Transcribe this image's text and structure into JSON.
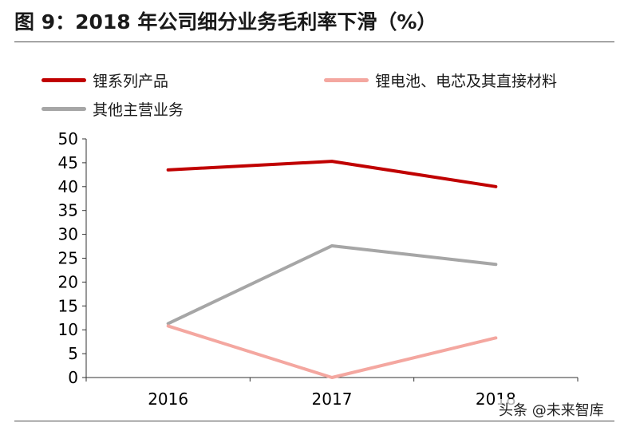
{
  "title": "图 9：2018 年公司细分业务毛利率下滑（%）",
  "watermark": "头条 @未来智库",
  "chart_data": {
    "type": "line",
    "title": "图 9：2018 年公司细分业务毛利率下滑（%）",
    "xlabel": "",
    "ylabel": "",
    "categories": [
      "2016",
      "2017",
      "2018"
    ],
    "ylim": [
      0,
      50
    ],
    "yticks": [
      0,
      5,
      10,
      15,
      20,
      25,
      30,
      35,
      40,
      45,
      50
    ],
    "grid": false,
    "legend_position": "top",
    "series": [
      {
        "name": "锂系列产品",
        "values": [
          43.5,
          45.3,
          40.0
        ],
        "color": "#c00000"
      },
      {
        "name": "锂电池、电芯及其直接材料",
        "values": [
          10.8,
          0.0,
          8.3
        ],
        "color": "#f4a7a0"
      },
      {
        "name": "其他主营业务",
        "values": [
          11.3,
          27.6,
          23.7
        ],
        "color": "#a6a6a6"
      }
    ]
  }
}
